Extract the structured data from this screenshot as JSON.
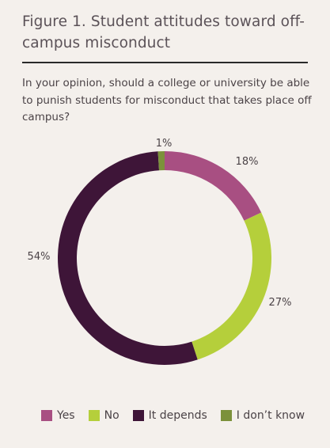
{
  "title": "Figure 1. Student attitudes toward off-campus misconduct",
  "question": "In your opinion, should a college or university be able to punish students for misconduct that takes place off campus?",
  "chart_data": {
    "type": "pie",
    "donut": true,
    "categories": [
      "Yes",
      "No",
      "It depends",
      "I don't know"
    ],
    "values": [
      18,
      27,
      54,
      1
    ],
    "labels": [
      "18%",
      "27%",
      "54%",
      "1%"
    ],
    "colors": [
      "#a84f82",
      "#b5cf3b",
      "#3e1538",
      "#7c913b"
    ],
    "legend": "bottom"
  },
  "legend": {
    "items": [
      {
        "label": "Yes",
        "color": "#a84f82"
      },
      {
        "label": "No",
        "color": "#b5cf3b"
      },
      {
        "label": "It depends",
        "color": "#3e1538"
      },
      {
        "label": "I don’t know",
        "color": "#7c913b"
      }
    ]
  }
}
